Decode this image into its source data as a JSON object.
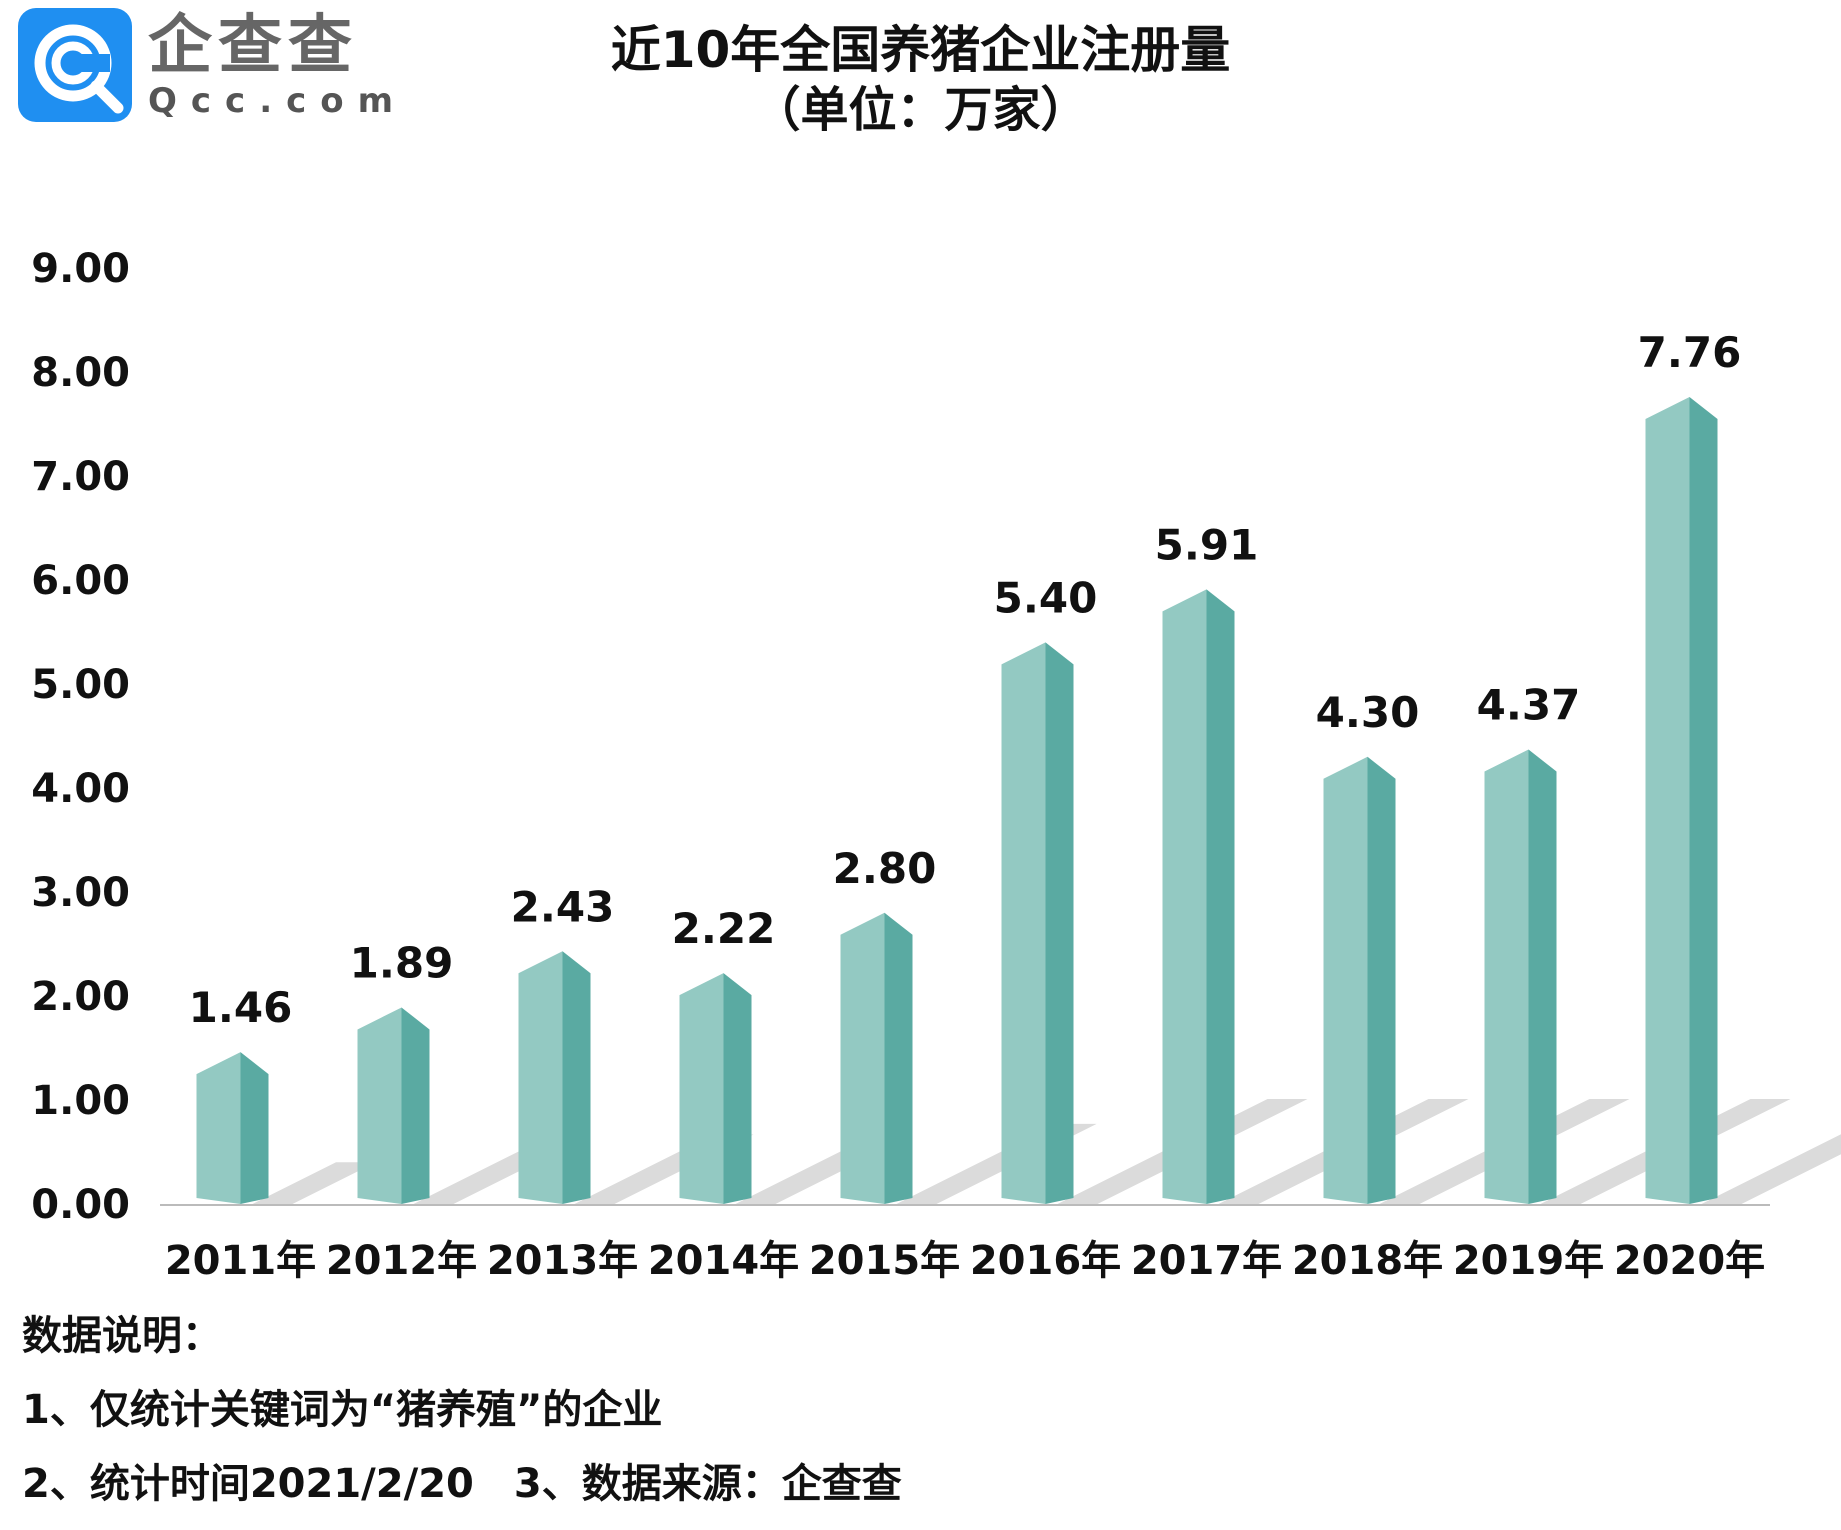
{
  "logo": {
    "cn_text": "企查查",
    "en_text": "Qcc.com"
  },
  "chart_data": {
    "type": "bar",
    "title": "近10年全国养猪企业注册量",
    "subtitle": "（单位：万家）",
    "categories": [
      "2011年",
      "2012年",
      "2013年",
      "2014年",
      "2015年",
      "2016年",
      "2017年",
      "2018年",
      "2019年",
      "2020年"
    ],
    "values": [
      1.46,
      1.89,
      2.43,
      2.22,
      2.8,
      5.4,
      5.91,
      4.3,
      4.37,
      7.76
    ],
    "value_labels": [
      "1.46",
      "1.89",
      "2.43",
      "2.22",
      "2.80",
      "5.40",
      "5.91",
      "4.30",
      "4.37",
      "7.76"
    ],
    "y_ticks": [
      "0.00",
      "1.00",
      "2.00",
      "3.00",
      "4.00",
      "5.00",
      "6.00",
      "7.00",
      "8.00",
      "9.00"
    ],
    "ylim": [
      0,
      9
    ],
    "xlabel": "",
    "ylabel": "",
    "grid": false,
    "colors": {
      "bar_front": "#93c9c2",
      "bar_side": "#5aaaa2",
      "shadow": "#d2d2d2",
      "axis": "#bbbbbb"
    }
  },
  "notes": {
    "heading": "数据说明：",
    "line1": "1、仅统计关键词为“猪养殖”的企业",
    "line2a": "2、统计时间2021/2/20",
    "line2b": "3、数据来源：企查查"
  }
}
